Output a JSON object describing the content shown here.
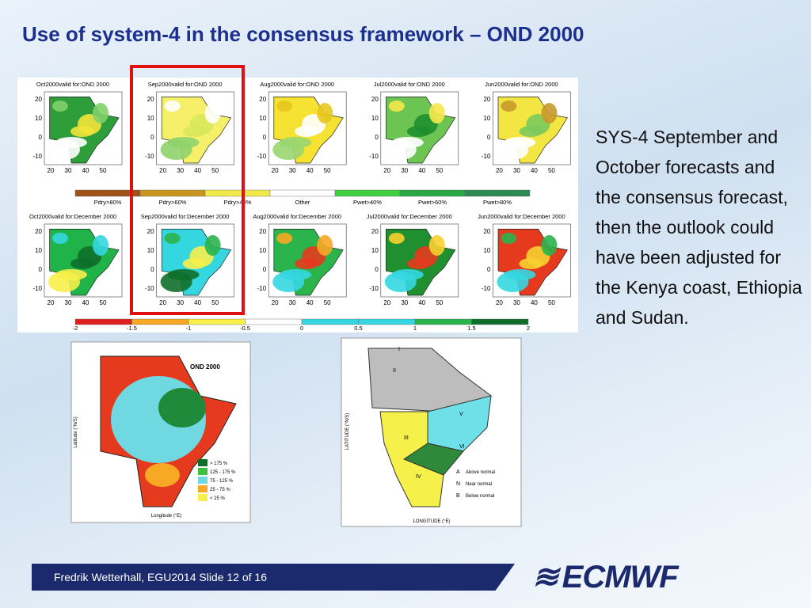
{
  "title": "Use of system-4 in the consensus framework – OND 2000",
  "body_text": "SYS-4 September and October forecasts and the consensus forecast, then the outlook could have been adjusted for the Kenya coast, Ethiopia and Sudan.",
  "panels": {
    "row1": [
      "Oct2000valid for:OND 2000",
      "Sep2000valid for:OND 2000",
      "Aug2000valid for:OND 2000",
      "Jul2000valid for:OND 2000",
      "Jun2000valid for:OND 2000"
    ],
    "row2": [
      "Oct2000valid for:December 2000",
      "Sep2000valid for:December 2000",
      "Aug2000valid for:December 2000",
      "Jul2000valid for:December 2000",
      "Jun2000valid for:December 2000"
    ],
    "y_ticks": [
      "20",
      "10",
      "0",
      "-10"
    ],
    "x_ticks": [
      "20",
      "30",
      "40",
      "50"
    ]
  },
  "legend1": [
    "Pdry>80%",
    "Pdry>60%",
    "Pdry>40%",
    "Other",
    "Pwet>40%",
    "Pwet>60%",
    "Pwet>80%"
  ],
  "legend2": [
    "-2",
    "-1.5",
    "-1",
    "-0.5",
    "0",
    "0.5",
    "1",
    "1.5",
    "2"
  ],
  "consensus_map": {
    "title": "OND 2000",
    "legend": [
      "> 175 %",
      "125 - 175 %",
      "75 - 125 %",
      "25 - 75 %",
      "< 25 %"
    ],
    "x_label": "Longitude (°E)",
    "y_label": "Latitude (°N/S)"
  },
  "zone_map": {
    "zones": [
      "I",
      "II",
      "III",
      "IV",
      "V",
      "VI"
    ],
    "legend": [
      "Above normal",
      "Near normal",
      "Below normal"
    ],
    "legend_keys": [
      "A",
      "N",
      "B"
    ],
    "x_label": "LONGITUDE (°E)",
    "y_label": "LATITUDE (°N/S)"
  },
  "footer": "Fredrik Wetterhall, EGU2014 Slide 12 of 16",
  "logo": "ECMWF"
}
